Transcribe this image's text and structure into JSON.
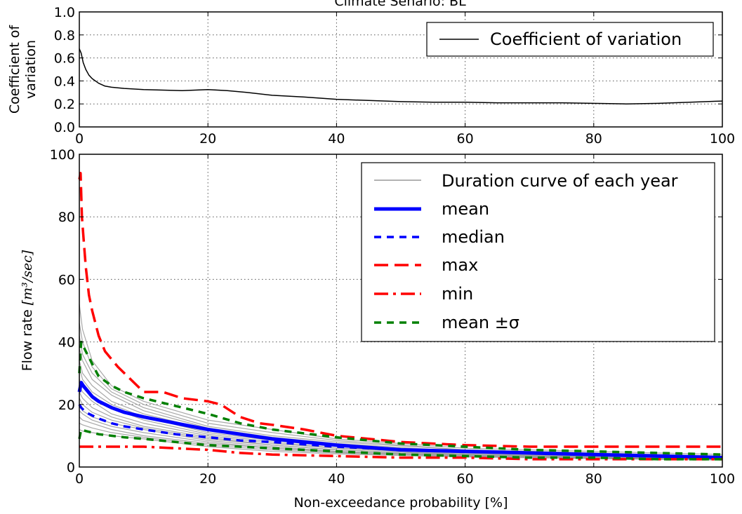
{
  "chart_data": [
    {
      "type": "line",
      "title": "Climate Senario: BL",
      "xlabel": "",
      "ylabel_lines": [
        "Coefficient of",
        "variation"
      ],
      "xlim": [
        0,
        100
      ],
      "ylim": [
        0,
        1.0
      ],
      "xticks": [
        "0",
        "20",
        "40",
        "60",
        "80",
        "100"
      ],
      "yticks": [
        "0.0",
        "0.2",
        "0.4",
        "0.6",
        "0.8",
        "1.0"
      ],
      "grid": true,
      "legend": {
        "placement": "top-right",
        "entries": [
          "Coefficient of variation"
        ]
      },
      "series": [
        {
          "name": "Coefficient of variation",
          "color": "#000000",
          "x": [
            0,
            0.3,
            0.6,
            1,
            1.5,
            2,
            3,
            4,
            5,
            7,
            10,
            13,
            16,
            18,
            20,
            23,
            26,
            30,
            35,
            40,
            45,
            50,
            55,
            60,
            65,
            70,
            75,
            80,
            85,
            90,
            95,
            100
          ],
          "y": [
            0.68,
            0.64,
            0.56,
            0.5,
            0.45,
            0.42,
            0.38,
            0.355,
            0.345,
            0.335,
            0.325,
            0.32,
            0.315,
            0.32,
            0.325,
            0.315,
            0.3,
            0.275,
            0.26,
            0.24,
            0.23,
            0.22,
            0.215,
            0.215,
            0.21,
            0.21,
            0.21,
            0.205,
            0.2,
            0.205,
            0.215,
            0.225
          ]
        }
      ]
    },
    {
      "type": "line",
      "title": "",
      "xlabel": "Non-exceedance probability [%]",
      "ylabel": "Flow rate",
      "ylabel_unit": "[m³/sec]",
      "xlim": [
        0,
        100
      ],
      "ylim": [
        0,
        100
      ],
      "xticks": [
        "0",
        "20",
        "40",
        "60",
        "80",
        "100"
      ],
      "yticks": [
        "0",
        "20",
        "40",
        "60",
        "80",
        "100"
      ],
      "grid": true,
      "legend": {
        "placement": "top-right",
        "entries": [
          "Duration curve of each year",
          "mean",
          "median",
          "max",
          "min",
          "mean ±σ"
        ]
      },
      "series": [
        {
          "name": "mean",
          "color": "#0000ff",
          "style": "solid",
          "x": [
            0,
            0.3,
            0.6,
            1,
            2,
            3,
            5,
            7,
            10,
            15,
            20,
            25,
            30,
            40,
            50,
            60,
            70,
            80,
            90,
            100
          ],
          "y": [
            24,
            27,
            26,
            25,
            22.5,
            21,
            19,
            17.5,
            16,
            14,
            12,
            10.5,
            9,
            7,
            5.5,
            5,
            4.5,
            4,
            3.5,
            3
          ]
        },
        {
          "name": "median",
          "color": "#0000ff",
          "style": "dashed",
          "x": [
            0,
            0.3,
            1,
            2,
            3,
            5,
            7,
            10,
            15,
            20,
            25,
            30,
            40,
            50,
            60,
            70,
            80,
            90,
            100
          ],
          "y": [
            20,
            19,
            17.5,
            16.5,
            15.5,
            14,
            13,
            12,
            10.5,
            9.5,
            8.5,
            8,
            6.5,
            5.5,
            5,
            4.5,
            4,
            3.5,
            3
          ]
        },
        {
          "name": "max",
          "color": "#ff0000",
          "style": "dashed",
          "x": [
            0,
            0.2,
            0.4,
            0.7,
            1,
            1.5,
            2,
            3,
            4,
            6,
            8,
            10,
            13,
            16,
            20,
            22,
            25,
            28,
            30,
            35,
            40,
            50,
            60,
            70,
            80,
            90,
            100
          ],
          "y": [
            92,
            94,
            80,
            72,
            64,
            55,
            50,
            42,
            37,
            32,
            28,
            24,
            24,
            22,
            21,
            20,
            16,
            14,
            13.5,
            12,
            10,
            8,
            7,
            6.5,
            6.5,
            6.5,
            6.5
          ]
        },
        {
          "name": "min",
          "color": "#ff0000",
          "style": "dashdot",
          "x": [
            0,
            10,
            20,
            25,
            30,
            40,
            50,
            60,
            70,
            80,
            90,
            100
          ],
          "y": [
            6.5,
            6.5,
            5.5,
            4.5,
            4,
            3.5,
            3,
            3,
            2.5,
            2.5,
            2.5,
            2.5
          ]
        },
        {
          "name": "mean +σ",
          "color": "#008000",
          "style": "dashed",
          "x": [
            0,
            0.3,
            1,
            2,
            3,
            5,
            7,
            10,
            15,
            20,
            25,
            30,
            40,
            50,
            60,
            70,
            80,
            90,
            100
          ],
          "y": [
            30,
            40,
            37,
            33,
            29,
            26,
            24,
            22,
            19.5,
            17,
            14,
            12,
            9.5,
            7.5,
            6.5,
            5.5,
            5,
            4.5,
            4
          ]
        },
        {
          "name": "mean -σ",
          "color": "#008000",
          "style": "dashed",
          "x": [
            0,
            0.3,
            1,
            2,
            3,
            5,
            7,
            10,
            15,
            20,
            25,
            30,
            40,
            50,
            60,
            70,
            80,
            90,
            100
          ],
          "y": [
            9,
            12,
            11.5,
            11,
            10.5,
            10,
            9.5,
            9,
            8,
            7,
            6.5,
            6,
            5,
            4,
            3.5,
            3,
            3,
            2.5,
            2.5
          ]
        },
        {
          "name": "Duration curve of each year",
          "color": "#999999",
          "style": "solid",
          "group": "years",
          "x": [
            0,
            0.5,
            2,
            5,
            10,
            20,
            30,
            40,
            60,
            80,
            100
          ],
          "curves": [
            [
              52,
              44,
              34,
              26,
              21,
              15,
              12,
              9,
              6,
              5,
              4
            ],
            [
              46,
              40,
              32,
              25,
              20,
              14,
              11,
              8.5,
              5.5,
              4.5,
              3.5
            ],
            [
              42,
              36,
              30,
              24,
              19,
              13,
              10,
              8,
              5.5,
              4.5,
              3.5
            ],
            [
              38,
              34,
              28,
              23,
              18,
              12.5,
              9.5,
              7.5,
              5,
              4,
              3.2
            ],
            [
              34,
              30,
              26,
              21,
              17,
              12,
              9,
              7,
              5,
              4,
              3
            ],
            [
              32,
              28,
              24,
              20,
              16,
              11,
              8.5,
              6.5,
              4.5,
              3.8,
              3
            ],
            [
              28,
              26,
              22,
              19,
              15,
              10.5,
              8,
              6,
              4.5,
              3.5,
              2.8
            ],
            [
              26,
              24,
              21,
              17,
              14,
              10,
              7.5,
              6,
              4.2,
              3.4,
              2.7
            ],
            [
              24,
              22,
              19,
              16,
              13,
              9.5,
              7,
              5.5,
              4,
              3.2,
              2.6
            ],
            [
              22,
              20,
              17.5,
              15,
              12.5,
              9,
              7,
              5.5,
              4,
              3.2,
              2.5
            ],
            [
              20,
              18,
              16,
              14,
              12,
              8.5,
              6.5,
              5,
              3.8,
              3,
              2.4
            ],
            [
              18,
              17,
              15,
              13,
              11,
              8,
              6,
              5,
              3.6,
              3,
              2.4
            ],
            [
              16,
              15,
              14,
              12,
              10,
              7.5,
              6,
              4.8,
              3.5,
              2.8,
              2.3
            ],
            [
              14,
              13.5,
              12.5,
              11,
              9.5,
              7,
              5.5,
              4.5,
              3.4,
              2.8,
              2.3
            ],
            [
              12,
              11.5,
              11,
              10,
              9,
              6.5,
              5,
              4.2,
              3.2,
              2.7,
              2.2
            ]
          ]
        }
      ]
    }
  ]
}
